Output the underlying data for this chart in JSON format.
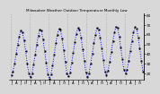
{
  "title": "Milwaukee Weather Outdoor Temperature Monthly Low",
  "ylim": [
    14,
    82
  ],
  "yticks": [
    20,
    30,
    40,
    50,
    60,
    70,
    80
  ],
  "line_color": "#0000EE",
  "marker_color": "#000000",
  "bg_color": "#d8d8d8",
  "grid_color": "#aaaaaa",
  "data": [
    18,
    22,
    30,
    40,
    50,
    58,
    64,
    62,
    54,
    43,
    30,
    20,
    16,
    20,
    29,
    39,
    50,
    59,
    65,
    64,
    55,
    43,
    31,
    19,
    15,
    19,
    28,
    39,
    51,
    60,
    66,
    65,
    56,
    44,
    32,
    20,
    17,
    21,
    31,
    41,
    52,
    61,
    67,
    65,
    57,
    45,
    33,
    21,
    16,
    20,
    30,
    40,
    51,
    60,
    67,
    65,
    57,
    46,
    34,
    22,
    18,
    23,
    32,
    42,
    53,
    62,
    68,
    67,
    58,
    47,
    35,
    24,
    20,
    24,
    33,
    43,
    53,
    62,
    68,
    66,
    57,
    46,
    33,
    22
  ],
  "num_years": 7,
  "dpi": 100
}
